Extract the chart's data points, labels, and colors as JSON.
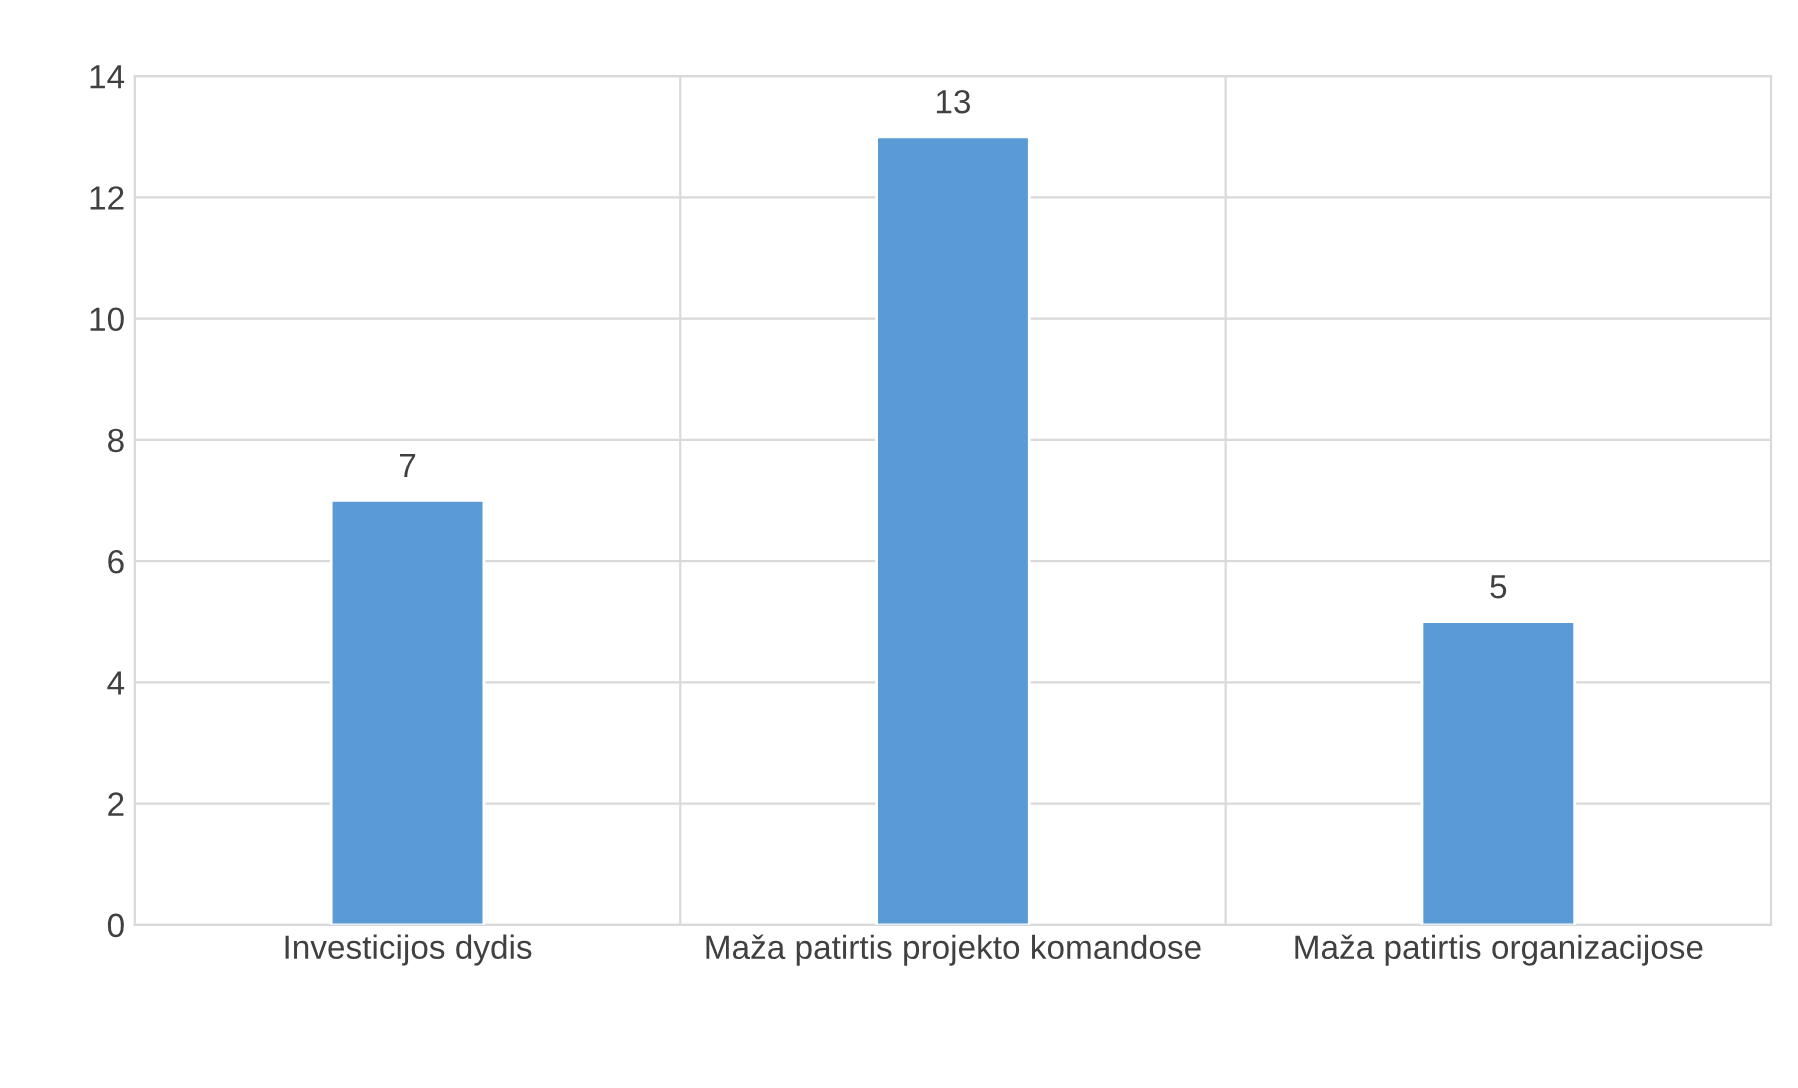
{
  "chart_data": {
    "type": "bar",
    "categories": [
      "Investicijos dydis",
      "Maža patirtis projekto komandose",
      "Maža patirtis organizacijose"
    ],
    "values": [
      7,
      13,
      5
    ],
    "color": "#5b9bd5",
    "ylim": [
      0,
      14
    ],
    "yticks": [
      0,
      2,
      4,
      6,
      8,
      10,
      12,
      14
    ],
    "grid": true,
    "data_labels": true
  }
}
